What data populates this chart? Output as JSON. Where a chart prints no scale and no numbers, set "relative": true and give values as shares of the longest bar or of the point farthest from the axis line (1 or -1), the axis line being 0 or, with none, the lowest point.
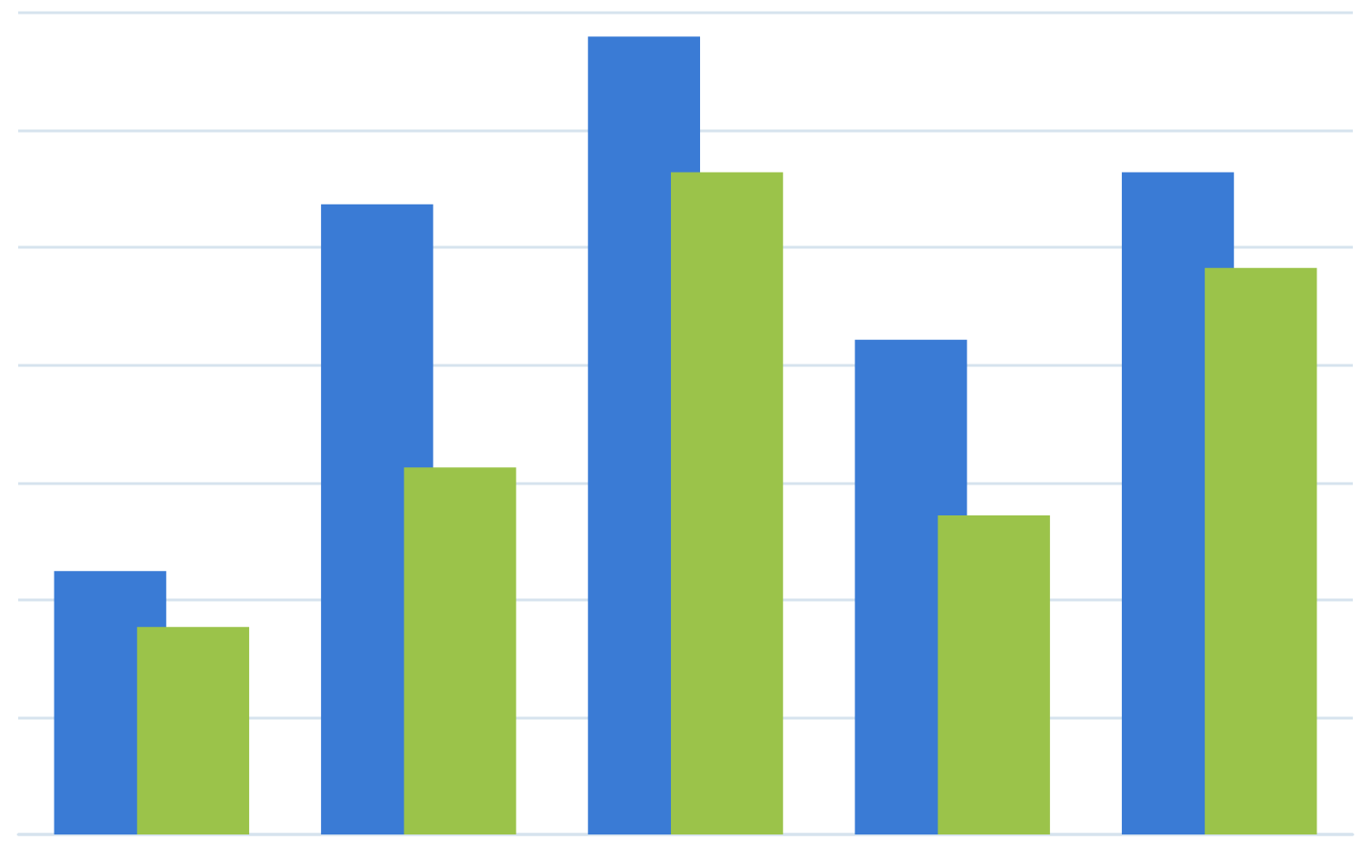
{
  "chart_data": {
    "type": "bar",
    "relative": true,
    "grid": "y",
    "categories": [
      null,
      null,
      null,
      null,
      null
    ],
    "series": [
      {
        "color": "#3a7bd5",
        "values": [
          0.33,
          0.79,
          1,
          0.62,
          0.83
        ]
      },
      {
        "color": "#9bc34a",
        "values": [
          0.26,
          0.46,
          0.83,
          0.4,
          0.71
        ]
      }
    ]
  }
}
